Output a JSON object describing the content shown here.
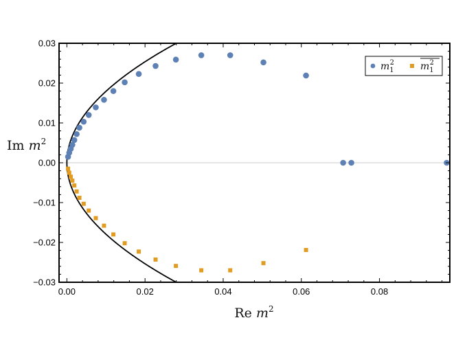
{
  "chart_data": {
    "type": "scatter",
    "xlabel_prefix": "Re",
    "xlabel_var": "m",
    "xlabel_sup": "2",
    "ylabel_prefix": "Im",
    "ylabel_var": "m",
    "ylabel_sup": "2",
    "xlim": [
      -0.002,
      0.098
    ],
    "ylim": [
      -0.03,
      0.03
    ],
    "xticks": [
      0.0,
      0.02,
      0.04,
      0.06,
      0.08
    ],
    "xtick_labels": [
      "0.00",
      "0.02",
      "0.04",
      "0.06",
      "0.08"
    ],
    "yticks": [
      0.03,
      0.02,
      0.01,
      0.0,
      -0.01,
      -0.02,
      -0.03
    ],
    "ytick_labels": [
      "0.03",
      "0.02",
      "0.01",
      "0.00",
      "−0.01",
      "−0.02",
      "−0.03"
    ],
    "legend_position": "top-right",
    "legend": [
      {
        "series": "m1",
        "base": "m",
        "sub": "1",
        "sup": "2",
        "overline": false
      },
      {
        "series": "m1bar",
        "base": "m",
        "sub": "1",
        "sup": "2",
        "overline": true
      }
    ],
    "series": [
      {
        "name": "m1",
        "marker": "circle",
        "color": "#5e81b5",
        "points": [
          [
            0.0003,
            0.0015
          ],
          [
            0.0006,
            0.0025
          ],
          [
            0.001,
            0.0035
          ],
          [
            0.0014,
            0.0045
          ],
          [
            0.0019,
            0.0057
          ],
          [
            0.0025,
            0.0072
          ],
          [
            0.0032,
            0.0088
          ],
          [
            0.0043,
            0.0103
          ],
          [
            0.0056,
            0.012
          ],
          [
            0.0074,
            0.0139
          ],
          [
            0.0095,
            0.0158
          ],
          [
            0.0119,
            0.018
          ],
          [
            0.0148,
            0.0202
          ],
          [
            0.0184,
            0.0223
          ],
          [
            0.0227,
            0.0243
          ],
          [
            0.0279,
            0.0259
          ],
          [
            0.0344,
            0.027
          ],
          [
            0.0418,
            0.027
          ],
          [
            0.0503,
            0.0252
          ],
          [
            0.0612,
            0.0219
          ],
          [
            0.0707,
            0.0
          ],
          [
            0.0728,
            0.0
          ],
          [
            0.0972,
            0.0
          ]
        ]
      },
      {
        "name": "m1bar",
        "marker": "square",
        "color": "#e19c24",
        "points": [
          [
            0.0003,
            -0.0015
          ],
          [
            0.0006,
            -0.0025
          ],
          [
            0.001,
            -0.0035
          ],
          [
            0.0014,
            -0.0045
          ],
          [
            0.0019,
            -0.0057
          ],
          [
            0.0025,
            -0.0072
          ],
          [
            0.0032,
            -0.0088
          ],
          [
            0.0043,
            -0.0103
          ],
          [
            0.0056,
            -0.012
          ],
          [
            0.0074,
            -0.0139
          ],
          [
            0.0095,
            -0.0158
          ],
          [
            0.0119,
            -0.018
          ],
          [
            0.0148,
            -0.0202
          ],
          [
            0.0184,
            -0.0223
          ],
          [
            0.0227,
            -0.0243
          ],
          [
            0.0279,
            -0.0259
          ],
          [
            0.0344,
            -0.027
          ],
          [
            0.0418,
            -0.027
          ],
          [
            0.0503,
            -0.0252
          ],
          [
            0.0612,
            -0.0219
          ],
          [
            0.0707,
            0.0
          ],
          [
            0.0728,
            0.0
          ],
          [
            0.0972,
            0.0
          ]
        ]
      }
    ],
    "curve": {
      "name": "parabola-boundary",
      "color": "#000000",
      "relation": "x = 31.1 * y^2",
      "coef": 31.1
    },
    "reference_line": {
      "name": "zero-line",
      "y": 0.0,
      "color": "#cccccc"
    }
  }
}
